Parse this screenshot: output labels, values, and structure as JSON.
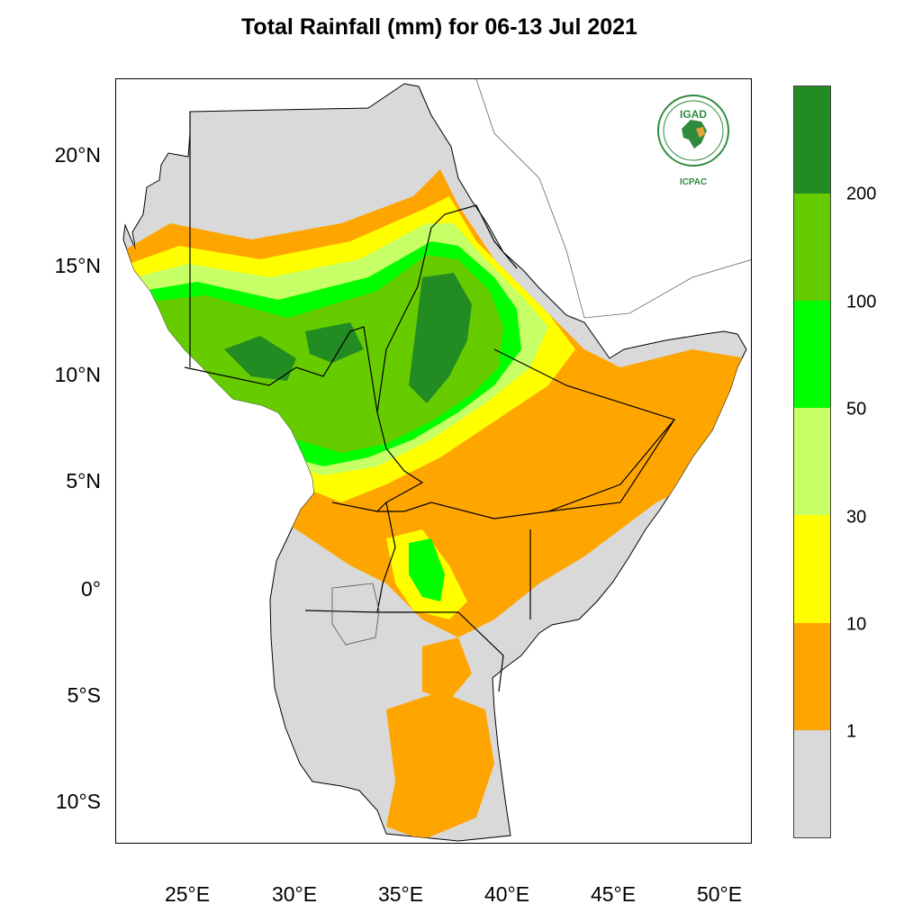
{
  "title": "Total Rainfall (mm) for 06-13 Jul 2021",
  "lat_ticks": [
    "20°N",
    "15°N",
    "10°N",
    "5°N",
    "0°",
    "5°S",
    "10°S"
  ],
  "lon_ticks": [
    "25°E",
    "30°E",
    "35°E",
    "40°E",
    "45°E",
    "50°E"
  ],
  "legend": {
    "colors": [
      "#d9d9d9",
      "#ffa500",
      "#ffff00",
      "#c6ff66",
      "#00ff00",
      "#66cc00",
      "#228b22"
    ],
    "labels": [
      "1",
      "10",
      "30",
      "50",
      "100",
      "200"
    ]
  },
  "logo": {
    "text": "IGAD",
    "caption": "ICPAC",
    "icon": "igad-emblem-icon"
  },
  "map_colors": {
    "land": "#d9d9d9",
    "ocean": "#ffffff",
    "border": "#000000"
  }
}
